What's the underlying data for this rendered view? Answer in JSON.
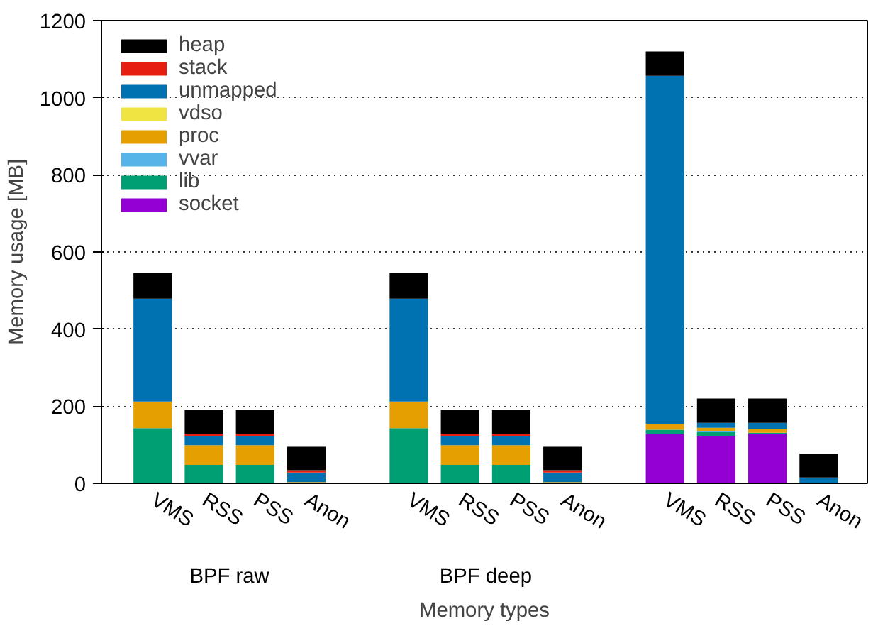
{
  "chart_data": {
    "type": "bar",
    "stacked": true,
    "xlabel": "Memory types",
    "ylabel": "Memory usage [MB]",
    "categories": [
      "VMS",
      "RSS",
      "PSS",
      "Anon",
      "VMS",
      "RSS",
      "PSS",
      "Anon",
      "VMS",
      "RSS",
      "PSS",
      "Anon"
    ],
    "annotations": [
      "BPF raw",
      "BPF deep"
    ],
    "series": [
      {
        "name": "socket",
        "color": "#9400d3",
        "values": [
          0,
          0,
          0,
          0,
          0,
          0,
          0,
          0,
          128,
          123,
          129,
          0
        ]
      },
      {
        "name": "lib",
        "color": "#009e73",
        "values": [
          143,
          48,
          48,
          0,
          143,
          48,
          48,
          0,
          11,
          10,
          2,
          0
        ]
      },
      {
        "name": "vvar",
        "color": "#56b4e9",
        "values": [
          0,
          0,
          0,
          0,
          0,
          0,
          0,
          0,
          0,
          3,
          0,
          0
        ]
      },
      {
        "name": "proc",
        "color": "#e69f00",
        "values": [
          69,
          51,
          51,
          3,
          69,
          51,
          51,
          3,
          15,
          8,
          9,
          0
        ]
      },
      {
        "name": "vdso",
        "color": "#f0e442",
        "values": [
          0,
          0,
          0,
          0,
          0,
          0,
          0,
          0,
          0,
          0,
          0,
          0
        ]
      },
      {
        "name": "unmapped",
        "color": "#0072b2",
        "values": [
          267,
          24,
          24,
          25,
          267,
          24,
          24,
          25,
          903,
          13,
          17,
          15
        ]
      },
      {
        "name": "stack",
        "color": "#e51e10",
        "values": [
          0,
          6,
          6,
          6,
          0,
          6,
          6,
          6,
          0,
          0,
          0,
          0
        ]
      },
      {
        "name": "heap",
        "color": "#000000",
        "values": [
          66,
          61,
          61,
          61,
          66,
          61,
          61,
          61,
          63,
          63,
          63,
          62
        ]
      }
    ],
    "ylim": [
      0,
      1200
    ],
    "yticks": [
      0,
      200,
      400,
      600,
      800,
      1000,
      1200
    ],
    "grid": "y",
    "legend": "top left"
  }
}
